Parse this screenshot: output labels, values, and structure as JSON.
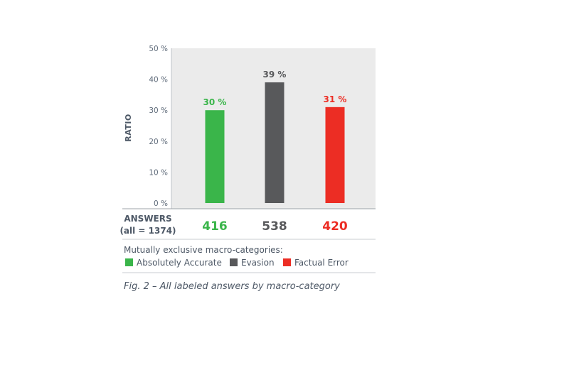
{
  "chart_data": {
    "type": "bar",
    "categories": [
      "Absolutely Accurate",
      "Evasion",
      "Factual Error"
    ],
    "values": [
      30,
      39,
      31
    ],
    "value_labels": [
      "30 %",
      "39 %",
      "31 %"
    ],
    "counts": [
      "416",
      "538",
      "420"
    ],
    "colors": [
      "#3ab54a",
      "#58595b",
      "#ec2d24"
    ],
    "ylabel": "RATIO",
    "ylim": [
      0,
      50
    ],
    "yticks": [
      0,
      10,
      20,
      30,
      40,
      50
    ],
    "ytick_labels": [
      "0 %",
      "10 %",
      "20 %",
      "30 %",
      "40 %",
      "50 %"
    ],
    "grid": false,
    "answers_label": "ANSWERS",
    "answers_sublabel": "(all = 1374)",
    "legend_title": "Mutually exclusive macro-categories:",
    "legend": [
      "Absolutely Accurate",
      "Evasion",
      "Factual Error"
    ],
    "legend_position": "bottom-left",
    "caption": "Fig. 2 – All labeled answers by macro-category"
  }
}
